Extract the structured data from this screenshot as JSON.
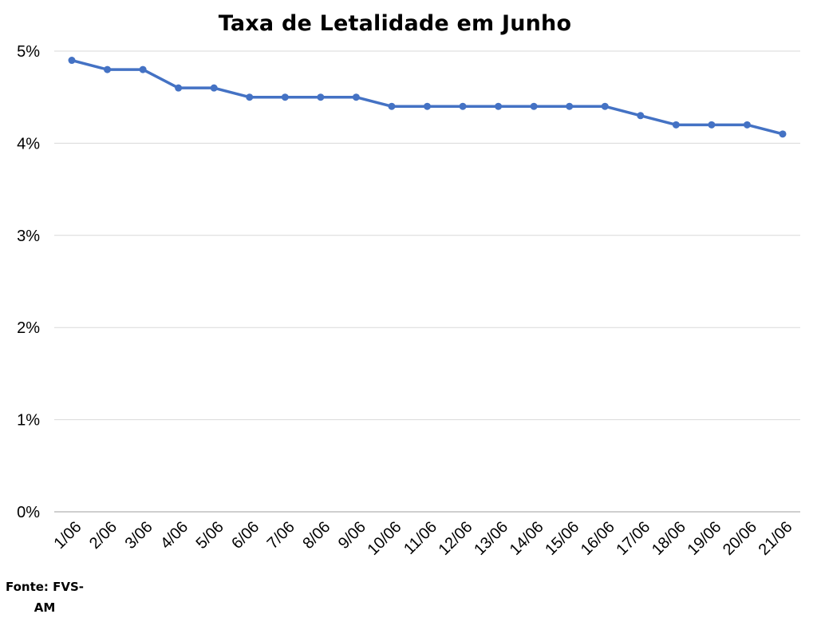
{
  "chart_data": {
    "type": "line",
    "title": "Taxa de Letalidade em Junho",
    "xlabel": "",
    "ylabel": "",
    "categories": [
      "1/06",
      "2/06",
      "3/06",
      "4/06",
      "5/06",
      "6/06",
      "7/06",
      "8/06",
      "9/06",
      "10/06",
      "11/06",
      "12/06",
      "13/06",
      "14/06",
      "15/06",
      "16/06",
      "17/06",
      "18/06",
      "19/06",
      "20/06",
      "21/06"
    ],
    "series": [
      {
        "values": [
          4.9,
          4.8,
          4.8,
          4.6,
          4.6,
          4.5,
          4.5,
          4.5,
          4.5,
          4.4,
          4.4,
          4.4,
          4.4,
          4.4,
          4.4,
          4.4,
          4.3,
          4.2,
          4.2,
          4.2,
          4.1
        ],
        "color": "#4472C4"
      }
    ],
    "ylim": [
      0,
      5
    ],
    "y_ticks": [
      0,
      1,
      2,
      3,
      4,
      5
    ],
    "y_tick_labels": [
      "0%",
      "1%",
      "2%",
      "3%",
      "4%",
      "5%"
    ],
    "grid": true,
    "legend": "none",
    "x_tick_rotation": "diagonal"
  },
  "source": {
    "line1": "Fonte: FVS-",
    "line2": "AM"
  },
  "colors": {
    "line": "#4472C4",
    "gridline": "#D9D9D9",
    "axis": "#BFBFBF"
  }
}
